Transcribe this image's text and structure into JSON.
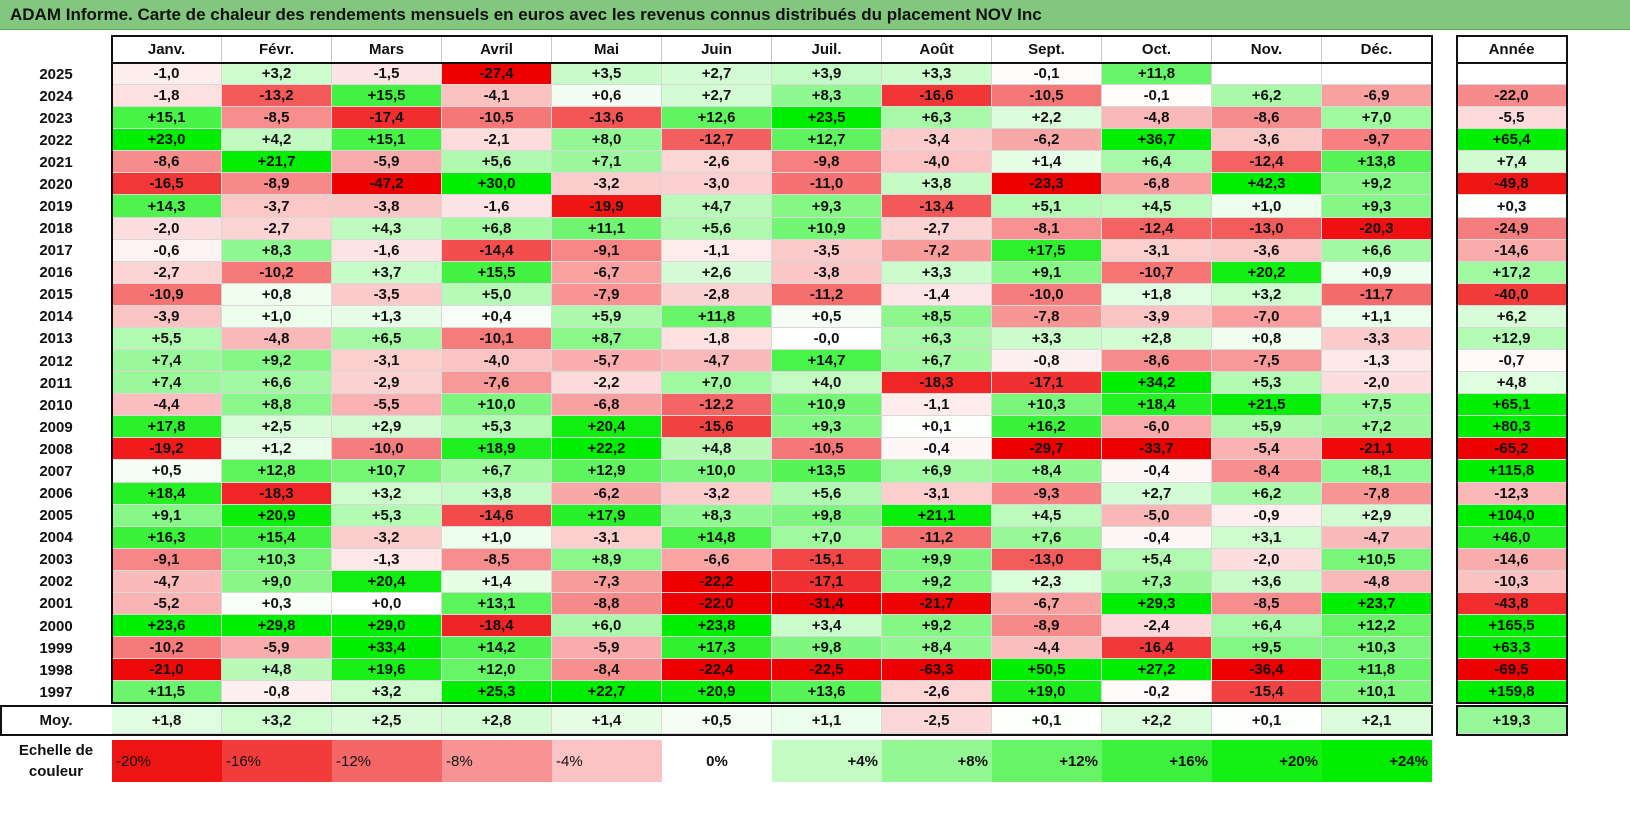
{
  "title": "ADAM Informe. Carte de chaleur des rendements mensuels en euros avec les revenus connus distribués du placement NOV Inc",
  "colors": {
    "title_bar": "#82c77d",
    "positive_max": "#00ee00",
    "negative_max": "#ee0000",
    "neutral": "#ffffff"
  },
  "chart_data": {
    "type": "heatmap",
    "title": "ADAM Informe. Carte de chaleur des rendements mensuels en euros avec les revenus connus distribués du placement NOV Inc",
    "columns": [
      "Janv.",
      "Févr.",
      "Mars",
      "Avril",
      "Mai",
      "Juin",
      "Juil.",
      "Août",
      "Sept.",
      "Oct.",
      "Nov.",
      "Déc."
    ],
    "year_header": "Année",
    "rows": [
      {
        "year": "2025",
        "months": [
          "-1,0",
          "+3,2",
          "-1,5",
          "-27,4",
          "+3,5",
          "+2,7",
          "+3,9",
          "+3,3",
          "-0,1",
          "+11,8",
          "",
          ""
        ],
        "annual": ""
      },
      {
        "year": "2024",
        "months": [
          "-1,8",
          "-13,2",
          "+15,5",
          "-4,1",
          "+0,6",
          "+2,7",
          "+8,3",
          "-16,6",
          "-10,5",
          "-0,1",
          "+6,2",
          "-6,9"
        ],
        "annual": "-22,0"
      },
      {
        "year": "2023",
        "months": [
          "+15,1",
          "-8,5",
          "-17,4",
          "-10,5",
          "-13,6",
          "+12,6",
          "+23,5",
          "+6,3",
          "+2,2",
          "-4,8",
          "-8,6",
          "+7,0"
        ],
        "annual": "-5,5"
      },
      {
        "year": "2022",
        "months": [
          "+23,0",
          "+4,2",
          "+15,1",
          "-2,1",
          "+8,0",
          "-12,7",
          "+12,7",
          "-3,4",
          "-6,2",
          "+36,7",
          "-3,6",
          "-9,7"
        ],
        "annual": "+65,4"
      },
      {
        "year": "2021",
        "months": [
          "-8,6",
          "+21,7",
          "-5,9",
          "+5,6",
          "+7,1",
          "-2,6",
          "-9,8",
          "-4,0",
          "+1,4",
          "+6,4",
          "-12,4",
          "+13,8"
        ],
        "annual": "+7,4"
      },
      {
        "year": "2020",
        "months": [
          "-16,5",
          "-8,9",
          "-47,2",
          "+30,0",
          "-3,2",
          "-3,0",
          "-11,0",
          "+3,8",
          "-23,3",
          "-6,8",
          "+42,3",
          "+9,2"
        ],
        "annual": "-49,8"
      },
      {
        "year": "2019",
        "months": [
          "+14,3",
          "-3,7",
          "-3,8",
          "-1,6",
          "-19,9",
          "+4,7",
          "+9,3",
          "-13,4",
          "+5,1",
          "+4,5",
          "+1,0",
          "+9,3"
        ],
        "annual": "+0,3"
      },
      {
        "year": "2018",
        "months": [
          "-2,0",
          "-2,7",
          "+4,3",
          "+6,8",
          "+11,1",
          "+5,6",
          "+10,9",
          "-2,7",
          "-8,1",
          "-12,4",
          "-13,0",
          "-20,3"
        ],
        "annual": "-24,9"
      },
      {
        "year": "2017",
        "months": [
          "-0,6",
          "+8,3",
          "-1,6",
          "-14,4",
          "-9,1",
          "-1,1",
          "-3,5",
          "-7,2",
          "+17,5",
          "-3,1",
          "-3,6",
          "+6,6"
        ],
        "annual": "-14,6"
      },
      {
        "year": "2016",
        "months": [
          "-2,7",
          "-10,2",
          "+3,7",
          "+15,5",
          "-6,7",
          "+2,6",
          "-3,8",
          "+3,3",
          "+9,1",
          "-10,7",
          "+20,2",
          "+0,9"
        ],
        "annual": "+17,2"
      },
      {
        "year": "2015",
        "months": [
          "-10,9",
          "+0,8",
          "-3,5",
          "+5,0",
          "-7,9",
          "-2,8",
          "-11,2",
          "-1,4",
          "-10,0",
          "+1,8",
          "+3,2",
          "-11,7"
        ],
        "annual": "-40,0"
      },
      {
        "year": "2014",
        "months": [
          "-3,9",
          "+1,0",
          "+1,3",
          "+0,4",
          "+5,9",
          "+11,8",
          "+0,5",
          "+8,5",
          "-7,8",
          "-3,9",
          "-7,0",
          "+1,1"
        ],
        "annual": "+6,2"
      },
      {
        "year": "2013",
        "months": [
          "+5,5",
          "-4,8",
          "+6,5",
          "-10,1",
          "+8,7",
          "-1,8",
          "-0,0",
          "+6,3",
          "+3,3",
          "+2,8",
          "+0,8",
          "-3,3"
        ],
        "annual": "+12,9"
      },
      {
        "year": "2012",
        "months": [
          "+7,4",
          "+9,2",
          "-3,1",
          "-4,0",
          "-5,7",
          "-4,7",
          "+14,7",
          "+6,7",
          "-0,8",
          "-8,6",
          "-7,5",
          "-1,3"
        ],
        "annual": "-0,7"
      },
      {
        "year": "2011",
        "months": [
          "+7,4",
          "+6,6",
          "-2,9",
          "-7,6",
          "-2,2",
          "+7,0",
          "+4,0",
          "-18,3",
          "-17,1",
          "+34,2",
          "+5,3",
          "-2,0"
        ],
        "annual": "+4,8"
      },
      {
        "year": "2010",
        "months": [
          "-4,4",
          "+8,8",
          "-5,5",
          "+10,0",
          "-6,8",
          "-12,2",
          "+10,9",
          "-1,1",
          "+10,3",
          "+18,4",
          "+21,5",
          "+7,5"
        ],
        "annual": "+65,1"
      },
      {
        "year": "2009",
        "months": [
          "+17,8",
          "+2,5",
          "+2,9",
          "+5,3",
          "+20,4",
          "-15,6",
          "+9,3",
          "+0,1",
          "+16,2",
          "-6,0",
          "+5,9",
          "+7,2"
        ],
        "annual": "+80,3"
      },
      {
        "year": "2008",
        "months": [
          "-19,2",
          "+1,2",
          "-10,0",
          "+18,9",
          "+22,2",
          "+4,8",
          "-10,5",
          "-0,4",
          "-29,7",
          "-33,7",
          "-5,4",
          "-21,1"
        ],
        "annual": "-65,2"
      },
      {
        "year": "2007",
        "months": [
          "+0,5",
          "+12,8",
          "+10,7",
          "+6,7",
          "+12,9",
          "+10,0",
          "+13,5",
          "+6,9",
          "+8,4",
          "-0,4",
          "-8,4",
          "+8,1"
        ],
        "annual": "+115,8"
      },
      {
        "year": "2006",
        "months": [
          "+18,4",
          "-18,3",
          "+3,2",
          "+3,8",
          "-6,2",
          "-3,2",
          "+5,6",
          "-3,1",
          "-9,3",
          "+2,7",
          "+6,2",
          "-7,8"
        ],
        "annual": "-12,3"
      },
      {
        "year": "2005",
        "months": [
          "+9,1",
          "+20,9",
          "+5,3",
          "-14,6",
          "+17,9",
          "+8,3",
          "+9,8",
          "+21,1",
          "+4,5",
          "-5,0",
          "-0,9",
          "+2,9"
        ],
        "annual": "+104,0"
      },
      {
        "year": "2004",
        "months": [
          "+16,3",
          "+15,4",
          "-3,2",
          "+1,0",
          "-3,1",
          "+14,8",
          "+7,0",
          "-11,2",
          "+7,6",
          "-0,4",
          "+3,1",
          "-4,7"
        ],
        "annual": "+46,0"
      },
      {
        "year": "2003",
        "months": [
          "-9,1",
          "+10,3",
          "-1,3",
          "-8,5",
          "+8,9",
          "-6,6",
          "-15,1",
          "+9,9",
          "-13,0",
          "+5,4",
          "-2,0",
          "+10,5"
        ],
        "annual": "-14,6"
      },
      {
        "year": "2002",
        "months": [
          "-4,7",
          "+9,0",
          "+20,4",
          "+1,4",
          "-7,3",
          "-22,2",
          "-17,1",
          "+9,2",
          "+2,3",
          "+7,3",
          "+3,6",
          "-4,8"
        ],
        "annual": "-10,3"
      },
      {
        "year": "2001",
        "months": [
          "-5,2",
          "+0,3",
          "+0,0",
          "+13,1",
          "-8,8",
          "-22,0",
          "-31,4",
          "-21,7",
          "-6,7",
          "+29,3",
          "-8,5",
          "+23,7"
        ],
        "annual": "-43,8"
      },
      {
        "year": "2000",
        "months": [
          "+23,6",
          "+29,8",
          "+29,0",
          "-18,4",
          "+6,0",
          "+23,8",
          "+3,4",
          "+9,2",
          "-8,9",
          "-2,4",
          "+6,4",
          "+12,2"
        ],
        "annual": "+165,5"
      },
      {
        "year": "1999",
        "months": [
          "-10,2",
          "-5,9",
          "+33,4",
          "+14,2",
          "-5,9",
          "+17,3",
          "+9,8",
          "+8,4",
          "-4,4",
          "-16,4",
          "+9,5",
          "+10,3"
        ],
        "annual": "+63,3"
      },
      {
        "year": "1998",
        "months": [
          "-21,0",
          "+4,8",
          "+19,6",
          "+12,0",
          "-8,4",
          "-22,4",
          "-22,5",
          "-63,3",
          "+50,5",
          "+27,2",
          "-36,4",
          "+11,8"
        ],
        "annual": "-69,5"
      },
      {
        "year": "1997",
        "months": [
          "+11,5",
          "-0,8",
          "+3,2",
          "+25,3",
          "+22,7",
          "+20,9",
          "+13,6",
          "-2,6",
          "+19,0",
          "-0,2",
          "-15,4",
          "+10,1"
        ],
        "annual": "+159,8"
      }
    ],
    "average": {
      "label": "Moy.",
      "months": [
        "+1,8",
        "+3,2",
        "+2,5",
        "+2,8",
        "+1,4",
        "+0,5",
        "+1,1",
        "-2,5",
        "+0,1",
        "+2,2",
        "+0,1",
        "+2,1"
      ],
      "annual": "+19,3"
    },
    "color_scale": {
      "label": "Echelle de couleur",
      "steps": [
        {
          "text": "-20%",
          "value": -20
        },
        {
          "text": "-16%",
          "value": -16
        },
        {
          "text": "-12%",
          "value": -12
        },
        {
          "text": "-8%",
          "value": -8
        },
        {
          "text": "-4%",
          "value": -4
        },
        {
          "text": "0%",
          "value": 0
        },
        {
          "text": "+4%",
          "value": 4
        },
        {
          "text": "+8%",
          "value": 8
        },
        {
          "text": "+12%",
          "value": 12
        },
        {
          "text": "+16%",
          "value": 16
        },
        {
          "text": "+20%",
          "value": 20
        },
        {
          "text": "+24%",
          "value": 24
        }
      ]
    }
  }
}
